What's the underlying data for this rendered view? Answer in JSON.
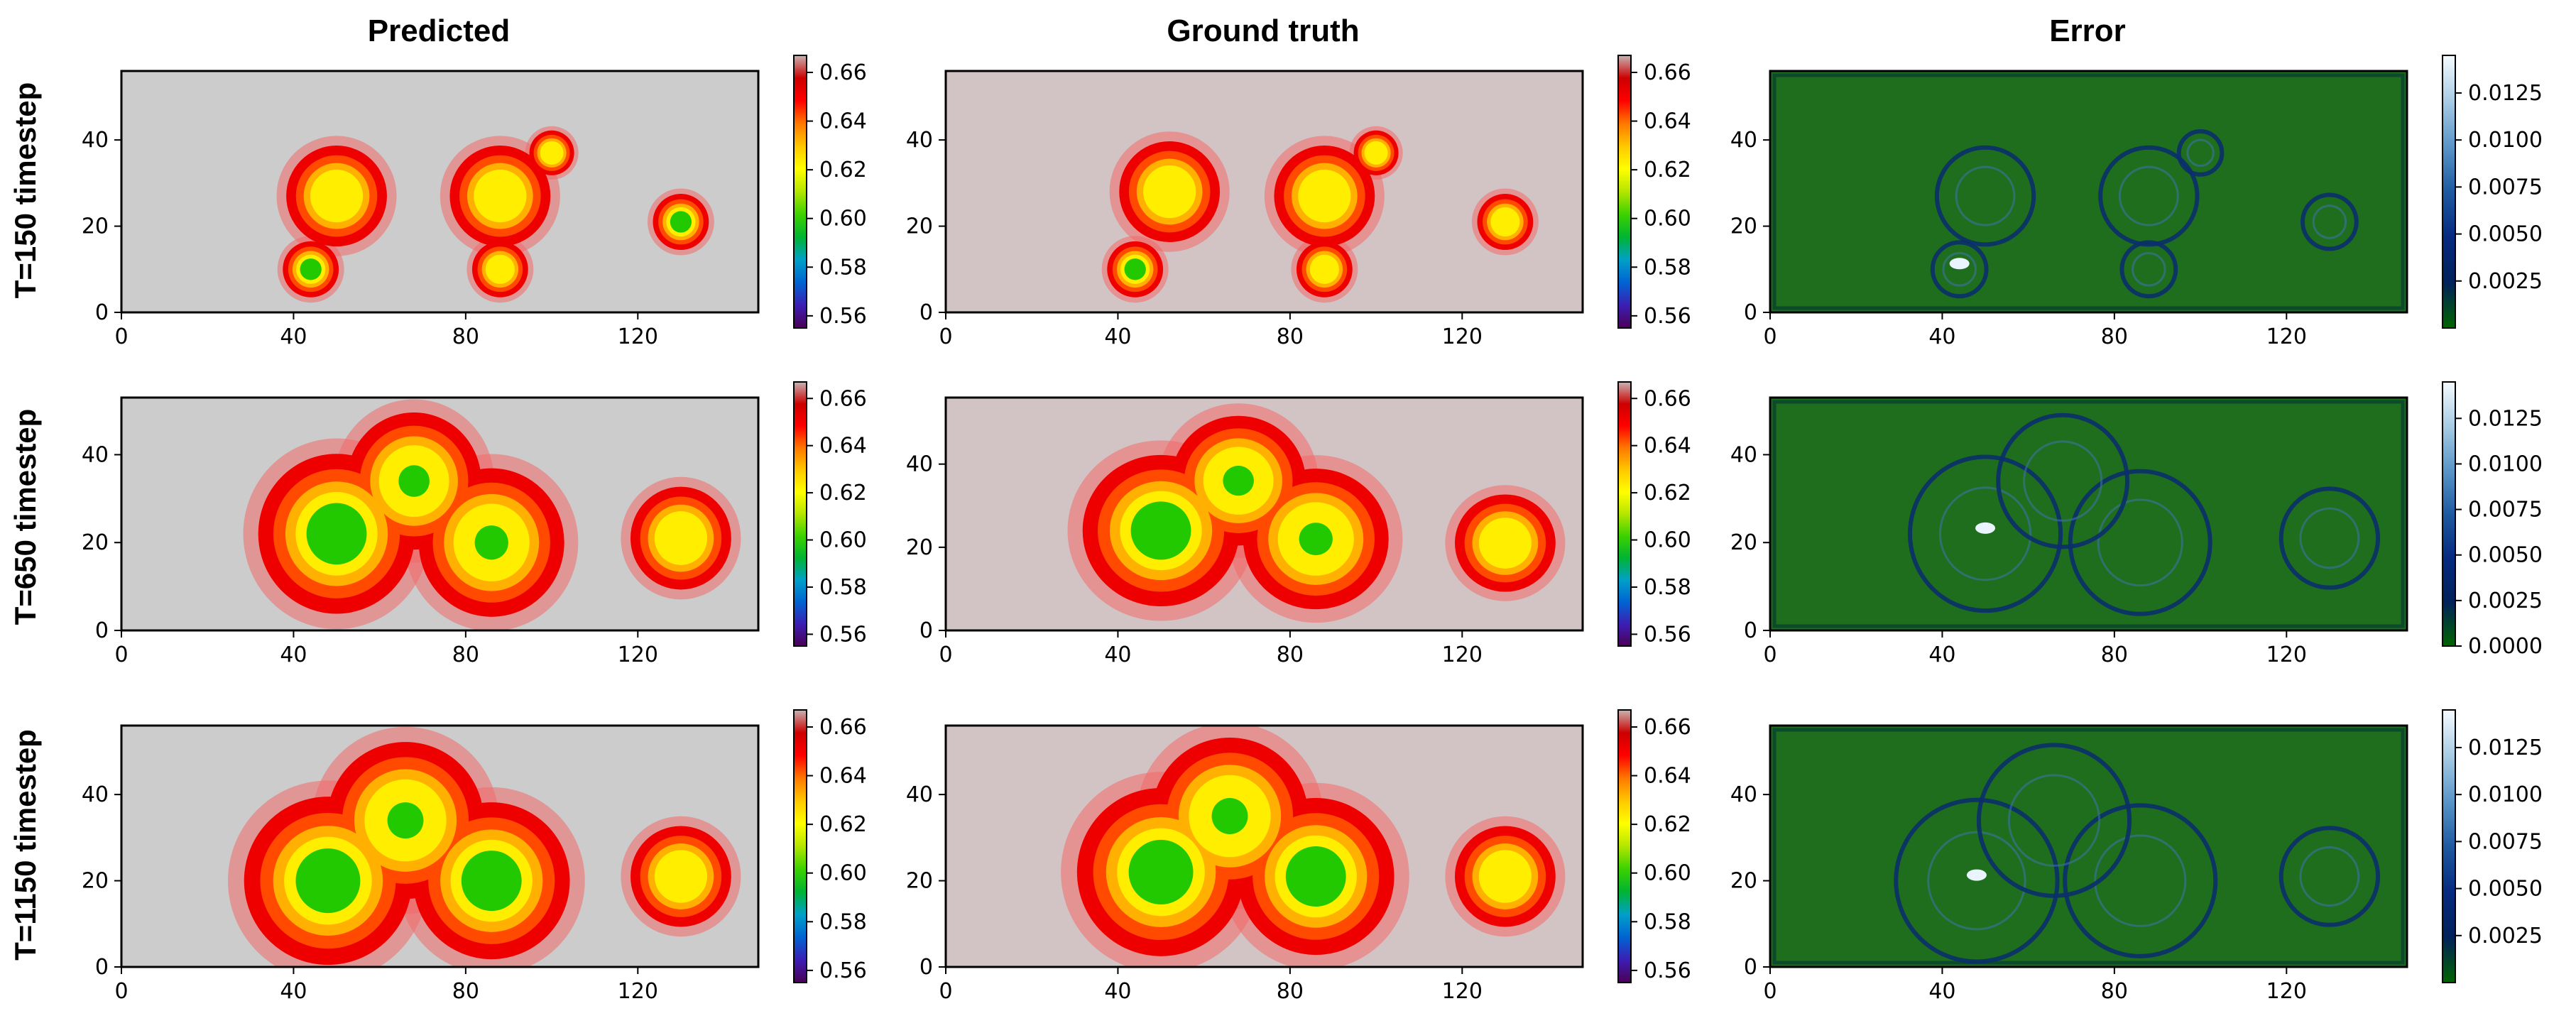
{
  "figure": {
    "column_titles": [
      "Predicted",
      "Ground truth",
      "Error"
    ],
    "row_labels": [
      "T=150 timestep",
      "T=650 timestep",
      "T=1150 timestep"
    ]
  },
  "colors": {
    "field_colormap": [
      "#4b0055",
      "#0000c8",
      "#0096d2",
      "#00b400",
      "#64d200",
      "#ffff00",
      "#ffa000",
      "#ff0000",
      "#d20000",
      "#cccccc"
    ],
    "error_colormap": [
      "#006400",
      "#00175a",
      "#0a3c8c",
      "#5a96c8",
      "#f0f8ff"
    ],
    "field_background_predicted": "#cccccc",
    "field_background_truth": "#d2c4c4",
    "error_background": "#1e6e1e"
  },
  "chart_data": [
    {
      "type": "heatmap",
      "panel": "predicted",
      "row": "T=150 timestep",
      "title": "Predicted",
      "xlim": [
        0,
        148
      ],
      "ylim": [
        0,
        56
      ],
      "xticks": [
        0,
        40,
        80,
        120
      ],
      "yticks": [
        0,
        20,
        40
      ],
      "colorbar": {
        "range": [
          0.555,
          0.667
        ],
        "ticks": [
          "0.56",
          "0.58",
          "0.60",
          "0.62",
          "0.64",
          "0.66"
        ]
      },
      "background_value": 0.55,
      "blobs": [
        {
          "x": 44,
          "y": 10,
          "r": 5,
          "peak": 0.61
        },
        {
          "x": 88,
          "y": 10,
          "r": 5,
          "peak": 0.64
        },
        {
          "x": 130,
          "y": 21,
          "r": 5,
          "peak": 0.62
        },
        {
          "x": 50,
          "y": 27,
          "r": 9,
          "peak": 0.65
        },
        {
          "x": 88,
          "y": 27,
          "r": 9,
          "peak": 0.645
        },
        {
          "x": 100,
          "y": 37,
          "r": 4,
          "peak": 0.64
        }
      ]
    },
    {
      "type": "heatmap",
      "panel": "ground_truth",
      "row": "T=150 timestep",
      "title": "Ground truth",
      "xlim": [
        0,
        148
      ],
      "ylim": [
        0,
        56
      ],
      "xticks": [
        0,
        40,
        80,
        120
      ],
      "yticks": [
        0,
        20,
        40
      ],
      "colorbar": {
        "range": [
          0.555,
          0.667
        ],
        "ticks": [
          "0.56",
          "0.58",
          "0.60",
          "0.62",
          "0.64",
          "0.66"
        ]
      },
      "background_value": 0.555,
      "blobs": [
        {
          "x": 44,
          "y": 10,
          "r": 5,
          "peak": 0.615
        },
        {
          "x": 88,
          "y": 10,
          "r": 5,
          "peak": 0.645
        },
        {
          "x": 130,
          "y": 21,
          "r": 5,
          "peak": 0.645
        },
        {
          "x": 52,
          "y": 28,
          "r": 9,
          "peak": 0.645
        },
        {
          "x": 88,
          "y": 27,
          "r": 9,
          "peak": 0.645
        },
        {
          "x": 100,
          "y": 37,
          "r": 4,
          "peak": 0.64
        }
      ]
    },
    {
      "type": "heatmap",
      "panel": "error",
      "row": "T=150 timestep",
      "title": "Error",
      "xlim": [
        0,
        148
      ],
      "ylim": [
        0,
        56
      ],
      "xticks": [
        0,
        40,
        80,
        120
      ],
      "yticks": [
        0,
        20,
        40
      ],
      "colorbar": {
        "range": [
          0,
          0.0145
        ],
        "ticks": [
          "0.0025",
          "0.0050",
          "0.0075",
          "0.0100",
          "0.0125"
        ]
      },
      "max_error": 0.014
    },
    {
      "type": "heatmap",
      "panel": "predicted",
      "row": "T=650 timestep",
      "xlim": [
        0,
        148
      ],
      "ylim": [
        0,
        53
      ],
      "xticks": [
        0,
        40,
        80,
        120
      ],
      "yticks": [
        0,
        20,
        40
      ],
      "colorbar": {
        "range": [
          0.555,
          0.667
        ],
        "ticks": [
          "0.56",
          "0.58",
          "0.60",
          "0.62",
          "0.64",
          "0.66"
        ]
      },
      "background_value": 0.55,
      "blobs": [
        {
          "x": 50,
          "y": 22,
          "r": 14,
          "peak": 0.62
        },
        {
          "x": 86,
          "y": 20,
          "r": 13,
          "peak": 0.625
        },
        {
          "x": 68,
          "y": 34,
          "r": 12,
          "peak": 0.635
        },
        {
          "x": 130,
          "y": 21,
          "r": 9,
          "peak": 0.645
        }
      ]
    },
    {
      "type": "heatmap",
      "panel": "ground_truth",
      "row": "T=650 timestep",
      "xlim": [
        0,
        148
      ],
      "ylim": [
        0,
        56
      ],
      "xticks": [
        0,
        40,
        80,
        120
      ],
      "yticks": [
        0,
        20,
        40
      ],
      "colorbar": {
        "range": [
          0.555,
          0.667
        ],
        "ticks": [
          "0.56",
          "0.58",
          "0.60",
          "0.62",
          "0.64",
          "0.66"
        ]
      },
      "background_value": 0.555,
      "blobs": [
        {
          "x": 50,
          "y": 24,
          "r": 14,
          "peak": 0.62
        },
        {
          "x": 86,
          "y": 22,
          "r": 13,
          "peak": 0.625
        },
        {
          "x": 68,
          "y": 36,
          "r": 12,
          "peak": 0.635
        },
        {
          "x": 130,
          "y": 21,
          "r": 9,
          "peak": 0.645
        }
      ]
    },
    {
      "type": "heatmap",
      "panel": "error",
      "row": "T=650 timestep",
      "xlim": [
        0,
        148
      ],
      "ylim": [
        0,
        53
      ],
      "xticks": [
        0,
        40,
        80,
        120
      ],
      "yticks": [
        0,
        20,
        40
      ],
      "colorbar": {
        "range": [
          0,
          0.0145
        ],
        "ticks": [
          "0.0000",
          "0.0025",
          "0.0050",
          "0.0075",
          "0.0100",
          "0.0125"
        ]
      },
      "max_error": 0.014
    },
    {
      "type": "heatmap",
      "panel": "predicted",
      "row": "T=1150 timestep",
      "xlim": [
        0,
        148
      ],
      "ylim": [
        0,
        56
      ],
      "xticks": [
        0,
        40,
        80,
        120
      ],
      "yticks": [
        0,
        20,
        40
      ],
      "colorbar": {
        "range": [
          0.555,
          0.667
        ],
        "ticks": [
          "0.56",
          "0.58",
          "0.60",
          "0.62",
          "0.64",
          "0.66"
        ]
      },
      "background_value": 0.55,
      "blobs": [
        {
          "x": 48,
          "y": 20,
          "r": 15,
          "peak": 0.615
        },
        {
          "x": 86,
          "y": 20,
          "r": 14,
          "peak": 0.62
        },
        {
          "x": 66,
          "y": 34,
          "r": 14,
          "peak": 0.625
        },
        {
          "x": 130,
          "y": 21,
          "r": 9,
          "peak": 0.645
        }
      ]
    },
    {
      "type": "heatmap",
      "panel": "ground_truth",
      "row": "T=1150 timestep",
      "xlim": [
        0,
        148
      ],
      "ylim": [
        0,
        56
      ],
      "xticks": [
        0,
        40,
        80,
        120
      ],
      "yticks": [
        0,
        20,
        40
      ],
      "colorbar": {
        "range": [
          0.555,
          0.667
        ],
        "ticks": [
          "0.56",
          "0.58",
          "0.60",
          "0.62",
          "0.64",
          "0.66"
        ]
      },
      "background_value": 0.555,
      "blobs": [
        {
          "x": 50,
          "y": 22,
          "r": 15,
          "peak": 0.612
        },
        {
          "x": 86,
          "y": 21,
          "r": 14,
          "peak": 0.62
        },
        {
          "x": 66,
          "y": 35,
          "r": 14,
          "peak": 0.625
        },
        {
          "x": 130,
          "y": 21,
          "r": 9,
          "peak": 0.645
        }
      ]
    },
    {
      "type": "heatmap",
      "panel": "error",
      "row": "T=1150 timestep",
      "xlim": [
        0,
        148
      ],
      "ylim": [
        0,
        56
      ],
      "xticks": [
        0,
        40,
        80,
        120
      ],
      "yticks": [
        0,
        20,
        40
      ],
      "colorbar": {
        "range": [
          0,
          0.0145
        ],
        "ticks": [
          "0.0025",
          "0.0050",
          "0.0075",
          "0.0100",
          "0.0125"
        ]
      },
      "max_error": 0.014
    }
  ]
}
